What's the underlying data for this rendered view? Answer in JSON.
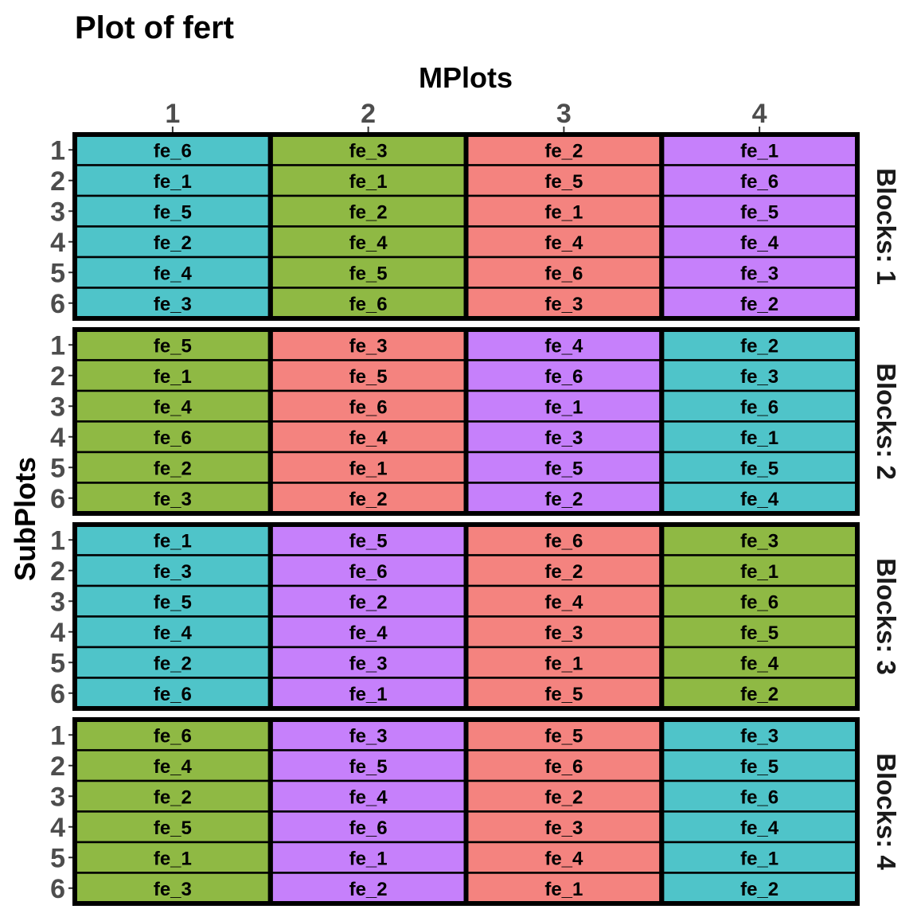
{
  "chart_data": {
    "type": "heatmap",
    "title": "Plot of fert",
    "xlabel": "MPlots",
    "ylabel": "SubPlots",
    "x_categories": [
      "1",
      "2",
      "3",
      "4"
    ],
    "y_categories": [
      "1",
      "2",
      "3",
      "4",
      "5",
      "6"
    ],
    "facets": [
      {
        "label": "Blocks: 1",
        "cells": [
          [
            "fe_6",
            "fe_3",
            "fe_2",
            "fe_1"
          ],
          [
            "fe_1",
            "fe_1",
            "fe_5",
            "fe_6"
          ],
          [
            "fe_5",
            "fe_2",
            "fe_1",
            "fe_5"
          ],
          [
            "fe_2",
            "fe_4",
            "fe_4",
            "fe_4"
          ],
          [
            "fe_4",
            "fe_5",
            "fe_6",
            "fe_3"
          ],
          [
            "fe_3",
            "fe_6",
            "fe_3",
            "fe_2"
          ]
        ],
        "column_colors": [
          "#4fc4c9",
          "#8fb944",
          "#f4837f",
          "#c680fb"
        ]
      },
      {
        "label": "Blocks: 2",
        "cells": [
          [
            "fe_5",
            "fe_3",
            "fe_4",
            "fe_2"
          ],
          [
            "fe_1",
            "fe_5",
            "fe_6",
            "fe_3"
          ],
          [
            "fe_4",
            "fe_6",
            "fe_1",
            "fe_6"
          ],
          [
            "fe_6",
            "fe_4",
            "fe_3",
            "fe_1"
          ],
          [
            "fe_2",
            "fe_1",
            "fe_5",
            "fe_5"
          ],
          [
            "fe_3",
            "fe_2",
            "fe_2",
            "fe_4"
          ]
        ],
        "column_colors": [
          "#8fb944",
          "#f4837f",
          "#c680fb",
          "#4fc4c9"
        ]
      },
      {
        "label": "Blocks: 3",
        "cells": [
          [
            "fe_1",
            "fe_5",
            "fe_6",
            "fe_3"
          ],
          [
            "fe_3",
            "fe_6",
            "fe_2",
            "fe_1"
          ],
          [
            "fe_5",
            "fe_2",
            "fe_4",
            "fe_6"
          ],
          [
            "fe_4",
            "fe_4",
            "fe_3",
            "fe_5"
          ],
          [
            "fe_2",
            "fe_3",
            "fe_1",
            "fe_4"
          ],
          [
            "fe_6",
            "fe_1",
            "fe_5",
            "fe_2"
          ]
        ],
        "column_colors": [
          "#4fc4c9",
          "#c680fb",
          "#f4837f",
          "#8fb944"
        ]
      },
      {
        "label": "Blocks: 4",
        "cells": [
          [
            "fe_6",
            "fe_3",
            "fe_5",
            "fe_3"
          ],
          [
            "fe_4",
            "fe_5",
            "fe_6",
            "fe_5"
          ],
          [
            "fe_2",
            "fe_4",
            "fe_2",
            "fe_6"
          ],
          [
            "fe_5",
            "fe_6",
            "fe_3",
            "fe_4"
          ],
          [
            "fe_1",
            "fe_1",
            "fe_4",
            "fe_1"
          ],
          [
            "fe_3",
            "fe_2",
            "fe_1",
            "fe_2"
          ]
        ],
        "column_colors": [
          "#8fb944",
          "#c680fb",
          "#f4837f",
          "#4fc4c9"
        ]
      }
    ],
    "grid": false,
    "legend": "none"
  }
}
